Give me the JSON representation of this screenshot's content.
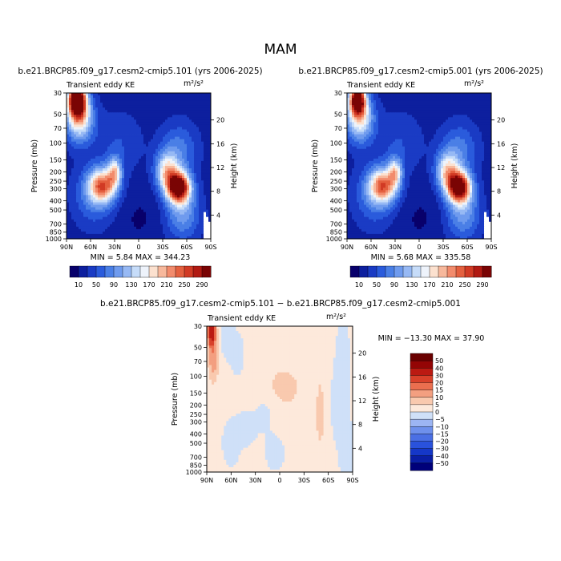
{
  "figure": {
    "title": "MAM",
    "panels": [
      {
        "title": "b.e21.BRCP85.f09_g17.cesm2-cmip5.101 (yrs 2006-2025)",
        "subtitle_left": "Transient eddy KE",
        "units": "m²/s²",
        "min_max": "MIN =    5.84   MAX = 344.23"
      },
      {
        "title": "b.e21.BRCP85.f09_g17.cesm2-cmip5.001 (yrs 2006-2025)",
        "subtitle_left": "Transient eddy KE",
        "units": "m²/s²",
        "min_max": "MIN =    5.68   MAX = 335.58"
      },
      {
        "title": "b.e21.BRCP85.f09_g17.cesm2-cmip5.101 − b.e21.BRCP85.f09_g17.cesm2-cmip5.001",
        "subtitle_left": "Transient eddy KE",
        "units": "m²/s²",
        "min_max": "MIN = −13.30   MAX =  37.90"
      }
    ],
    "ylabel_left": "Pressure (mb)",
    "ylabel_right": "Height (km)",
    "colorbar_top_ticks": [
      "10",
      "50",
      "90",
      "130",
      "170",
      "210",
      "250",
      "290"
    ],
    "colorbar_diff_ticks": [
      "50",
      "40",
      "30",
      "20",
      "15",
      "10",
      "5",
      "0",
      "−5",
      "−10",
      "−15",
      "−20",
      "−30",
      "−40",
      "−50"
    ]
  },
  "chart_data": [
    {
      "type": "heatmap",
      "title": "b.e21.BRCP85.f09_g17.cesm2-cmip5.101 (yrs 2006-2025)",
      "variable": "Transient eddy KE",
      "units": "m²/s²",
      "xlabel": "",
      "ylabel": "Pressure (mb)",
      "ylabel_right": "Height (km)",
      "x_ticks": [
        "90N",
        "60N",
        "30N",
        "0",
        "30S",
        "60S",
        "90S"
      ],
      "x_lat": [
        90,
        60,
        30,
        0,
        -30,
        -60,
        -90
      ],
      "y_ticks": [
        30,
        50,
        70,
        100,
        150,
        200,
        250,
        300,
        400,
        500,
        700,
        850,
        1000
      ],
      "y_right_ticks": [
        4,
        8,
        12,
        16,
        20
      ],
      "levels": [
        10,
        30,
        50,
        70,
        90,
        110,
        130,
        150,
        170,
        190,
        210,
        230,
        250,
        270,
        290,
        310
      ],
      "colors": [
        "#08006b",
        "#0d1f9e",
        "#1a3bc4",
        "#2a5bdc",
        "#4a7fe6",
        "#6f9bee",
        "#97b9f4",
        "#c6dcf9",
        "#eef3fb",
        "#fce1cf",
        "#f7b89c",
        "#f28b6c",
        "#e4603f",
        "#d13a24",
        "#b11a12",
        "#7a0404"
      ],
      "y_log": true,
      "min": 5.84,
      "max": 344.23,
      "background": 20,
      "features": [
        {
          "lat": 77,
          "p": 35,
          "amp": 320,
          "slat": 8,
          "slogp": 0.12
        },
        {
          "lat": 74,
          "p": 55,
          "amp": 160,
          "slat": 12,
          "slogp": 0.17
        },
        {
          "lat": 45,
          "p": 280,
          "amp": 190,
          "slat": 12,
          "slogp": 0.12
        },
        {
          "lat": 30,
          "p": 200,
          "amp": 130,
          "slat": 6,
          "slogp": 0.1
        },
        {
          "lat": 55,
          "p": 350,
          "amp": 60,
          "slat": 18,
          "slogp": 0.22
        },
        {
          "lat": -50,
          "p": 290,
          "amp": 310,
          "slat": 10,
          "slogp": 0.11
        },
        {
          "lat": -35,
          "p": 200,
          "amp": 140,
          "slat": 10,
          "slogp": 0.14
        },
        {
          "lat": -55,
          "p": 550,
          "amp": 80,
          "slat": 15,
          "slogp": 0.18
        },
        {
          "lat": -50,
          "p": 120,
          "amp": 60,
          "slat": 16,
          "slogp": 0.2
        },
        {
          "lat": 25,
          "p": 100,
          "amp": 30,
          "slat": 20,
          "slogp": 0.22
        },
        {
          "lat": 0,
          "p": 600,
          "amp": -12,
          "slat": 20,
          "slogp": 0.2
        }
      ]
    },
    {
      "type": "heatmap",
      "title": "b.e21.BRCP85.f09_g17.cesm2-cmip5.001 (yrs 2006-2025)",
      "variable": "Transient eddy KE",
      "units": "m²/s²",
      "xlabel": "",
      "ylabel": "Pressure (mb)",
      "ylabel_right": "Height (km)",
      "x_ticks": [
        "90N",
        "60N",
        "30N",
        "0",
        "30S",
        "60S",
        "90S"
      ],
      "x_lat": [
        90,
        60,
        30,
        0,
        -30,
        -60,
        -90
      ],
      "y_ticks": [
        30,
        50,
        70,
        100,
        150,
        200,
        250,
        300,
        400,
        500,
        700,
        850,
        1000
      ],
      "y_right_ticks": [
        4,
        8,
        12,
        16,
        20
      ],
      "levels": [
        10,
        30,
        50,
        70,
        90,
        110,
        130,
        150,
        170,
        190,
        210,
        230,
        250,
        270,
        290,
        310
      ],
      "colors": [
        "#08006b",
        "#0d1f9e",
        "#1a3bc4",
        "#2a5bdc",
        "#4a7fe6",
        "#6f9bee",
        "#97b9f4",
        "#c6dcf9",
        "#eef3fb",
        "#fce1cf",
        "#f7b89c",
        "#f28b6c",
        "#e4603f",
        "#d13a24",
        "#b11a12",
        "#7a0404"
      ],
      "y_log": true,
      "min": 5.68,
      "max": 335.58,
      "background": 20,
      "features": [
        {
          "lat": 77,
          "p": 35,
          "amp": 290,
          "slat": 7,
          "slogp": 0.11
        },
        {
          "lat": 74,
          "p": 55,
          "amp": 150,
          "slat": 12,
          "slogp": 0.17
        },
        {
          "lat": 45,
          "p": 280,
          "amp": 185,
          "slat": 12,
          "slogp": 0.12
        },
        {
          "lat": 30,
          "p": 200,
          "amp": 125,
          "slat": 6,
          "slogp": 0.1
        },
        {
          "lat": 55,
          "p": 350,
          "amp": 60,
          "slat": 18,
          "slogp": 0.22
        },
        {
          "lat": -50,
          "p": 290,
          "amp": 305,
          "slat": 10,
          "slogp": 0.11
        },
        {
          "lat": -35,
          "p": 200,
          "amp": 140,
          "slat": 10,
          "slogp": 0.14
        },
        {
          "lat": -55,
          "p": 550,
          "amp": 80,
          "slat": 15,
          "slogp": 0.18
        },
        {
          "lat": -50,
          "p": 120,
          "amp": 60,
          "slat": 16,
          "slogp": 0.2
        },
        {
          "lat": 25,
          "p": 100,
          "amp": 30,
          "slat": 20,
          "slogp": 0.22
        },
        {
          "lat": 0,
          "p": 600,
          "amp": -12,
          "slat": 20,
          "slogp": 0.2
        }
      ]
    },
    {
      "type": "heatmap",
      "title": "b.e21.BRCP85.f09_g17.cesm2-cmip5.101 − b.e21.BRCP85.f09_g17.cesm2-cmip5.001",
      "variable": "Transient eddy KE",
      "units": "m²/s²",
      "xlabel": "",
      "ylabel": "Pressure (mb)",
      "ylabel_right": "Height (km)",
      "x_ticks": [
        "90N",
        "60N",
        "30N",
        "0",
        "30S",
        "60S",
        "90S"
      ],
      "x_lat": [
        90,
        60,
        30,
        0,
        -30,
        -60,
        -90
      ],
      "y_ticks": [
        30,
        50,
        70,
        100,
        150,
        200,
        250,
        300,
        400,
        500,
        700,
        850,
        1000
      ],
      "y_right_ticks": [
        4,
        8,
        12,
        16,
        20
      ],
      "levels": [
        -50,
        -40,
        -30,
        -20,
        -15,
        -10,
        -5,
        0,
        5,
        10,
        15,
        20,
        30,
        40,
        50
      ],
      "colors": [
        "#00007a",
        "#0a1ea5",
        "#1537c8",
        "#2a52dc",
        "#4a6fe4",
        "#6e90ec",
        "#9cb5f3",
        "#cfe0f8",
        "#fde9db",
        "#f9c9ae",
        "#f39f80",
        "#ea6f4f",
        "#d8412a",
        "#bb1a12",
        "#940505",
        "#6a0000"
      ],
      "colorbar_labels": [
        "50",
        "40",
        "30",
        "20",
        "15",
        "10",
        "5",
        "0",
        "−5",
        "−10",
        "−15",
        "−20",
        "−30",
        "−40",
        "−50"
      ],
      "y_log": true,
      "min": -13.3,
      "max": 37.9,
      "background": 2,
      "features": [
        {
          "lat": 84,
          "p": 35,
          "amp": 36,
          "slat": 3.5,
          "slogp": 0.1
        },
        {
          "lat": 82,
          "p": 70,
          "amp": 12,
          "slat": 4,
          "slogp": 0.14
        },
        {
          "lat": 65,
          "p": 40,
          "amp": -5,
          "slat": 6,
          "slogp": 0.15
        },
        {
          "lat": 52,
          "p": 60,
          "amp": -4,
          "slat": 7,
          "slogp": 0.18
        },
        {
          "lat": 60,
          "p": 500,
          "amp": -5,
          "slat": 8,
          "slogp": 0.18
        },
        {
          "lat": 40,
          "p": 350,
          "amp": -4,
          "slat": 10,
          "slogp": 0.15
        },
        {
          "lat": 18,
          "p": 250,
          "amp": -4,
          "slat": 8,
          "slogp": 0.12
        },
        {
          "lat": 5,
          "p": 600,
          "amp": -5,
          "slat": 10,
          "slogp": 0.16
        },
        {
          "lat": -5,
          "p": 120,
          "amp": 4,
          "slat": 16,
          "slogp": 0.15
        },
        {
          "lat": -15,
          "p": 300,
          "amp": 2,
          "slat": 20,
          "slogp": 0.25
        },
        {
          "lat": -50,
          "p": 240,
          "amp": 7,
          "slat": 3,
          "slogp": 0.22
        },
        {
          "lat": -70,
          "p": 200,
          "amp": -4,
          "slat": 6,
          "slogp": 0.3
        },
        {
          "lat": -78,
          "p": 60,
          "amp": -5,
          "slat": 6,
          "slogp": 0.3
        },
        {
          "lat": -82,
          "p": 600,
          "amp": -5,
          "slat": 6,
          "slogp": 0.35
        }
      ]
    }
  ]
}
